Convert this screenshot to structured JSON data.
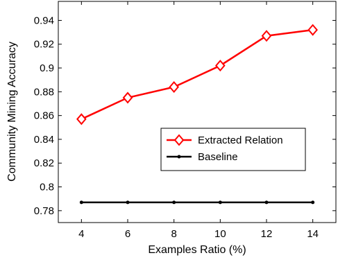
{
  "chart_data": {
    "type": "line",
    "xlabel": "Examples Ratio (%)",
    "ylabel": "Community Mining Accuracy",
    "x": [
      4,
      6,
      8,
      10,
      12,
      14
    ],
    "xticks": [
      "4",
      "6",
      "8",
      "10",
      "12",
      "14"
    ],
    "yticks": [
      "0.78",
      "0.8",
      "0.82",
      "0.84",
      "0.86",
      "0.88",
      "0.9",
      "0.92",
      "0.94"
    ],
    "xlim": [
      3,
      15
    ],
    "ylim": [
      0.77,
      0.956
    ],
    "grid": false,
    "legend_position": "center-right",
    "series": [
      {
        "name": "Extracted Relation",
        "color": "#ff0000",
        "marker": "diamond",
        "values": [
          0.857,
          0.875,
          0.884,
          0.902,
          0.927,
          0.932
        ]
      },
      {
        "name": "Baseline",
        "color": "#000000",
        "marker": "dot",
        "values": [
          0.787,
          0.787,
          0.787,
          0.787,
          0.787,
          0.787
        ]
      }
    ]
  }
}
